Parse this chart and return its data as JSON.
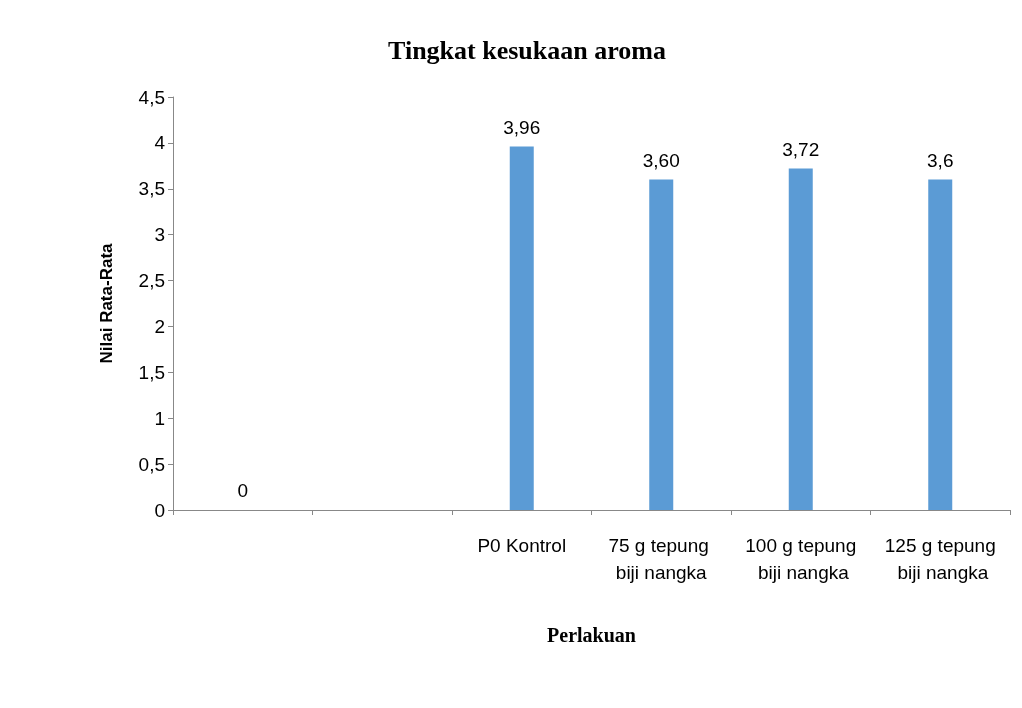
{
  "chart_data": {
    "type": "bar",
    "title": "Tingkat kesukaan aroma",
    "xlabel": "Perlakuan",
    "ylabel": "Nilai Rata-Rata",
    "categories": [
      null,
      null,
      "P0 Kontrol",
      "75 g tepung biji nangka",
      "100 g tepung biji nangka",
      "125 g tepung biji nangka"
    ],
    "values": [
      0,
      null,
      3.96,
      3.6,
      3.72,
      3.6
    ],
    "value_labels": [
      "0",
      null,
      "3,96",
      "3,60",
      "3,72",
      "3,6"
    ],
    "color": "#5b9bd5",
    "ylim": [
      0,
      4.5
    ],
    "yticks": [
      0,
      {
        "value": 0.5,
        "label": "0,5"
      },
      1,
      {
        "value": 1.5,
        "label": "1,5"
      },
      2,
      {
        "value": 2.5,
        "label": "2,5"
      },
      3,
      {
        "value": 3.5,
        "label": "3,5"
      },
      4,
      {
        "value": 4.5,
        "label": "4,5"
      }
    ],
    "grid": false
  }
}
